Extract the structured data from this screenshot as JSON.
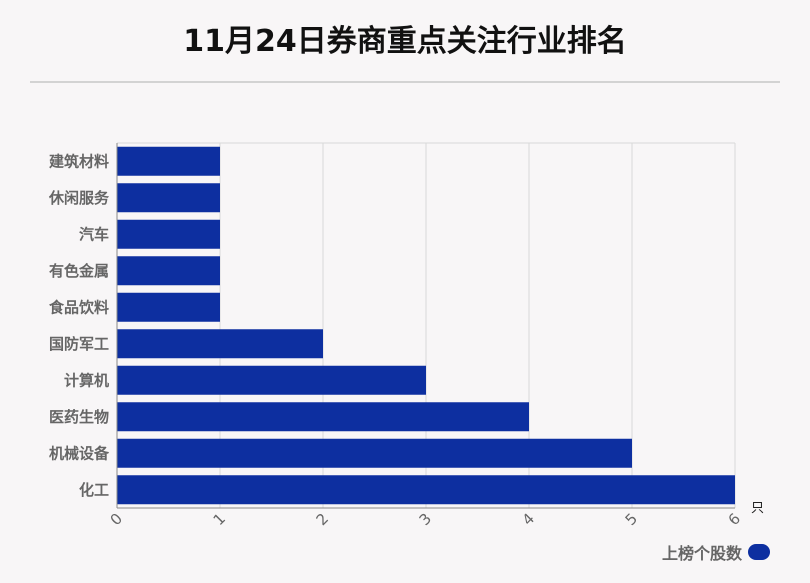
{
  "title": "11月24日券商重点关注行业排名",
  "legend": {
    "label": "上榜个股数",
    "swatch_icon": "rounded-rect-swatch-icon"
  },
  "colors": {
    "bar": "#0d2fa0",
    "grid": "#d8d8d8",
    "axis": "#888888"
  },
  "chart_data": {
    "type": "bar",
    "orientation": "horizontal",
    "categories": [
      "化工",
      "机械设备",
      "医药生物",
      "计算机",
      "国防军工",
      "食品饮料",
      "有色金属",
      "汽车",
      "休闲服务",
      "建筑材料"
    ],
    "series": [
      {
        "name": "上榜个股数",
        "values": [
          6,
          5,
          4,
          3,
          2,
          1,
          1,
          1,
          1,
          1
        ]
      }
    ],
    "xlim": [
      0,
      6
    ],
    "xticks": [
      "0",
      "1",
      "2",
      "3",
      "4",
      "5",
      "6"
    ],
    "xunit": "只",
    "grid": true,
    "legend_position": "bottom-right"
  }
}
